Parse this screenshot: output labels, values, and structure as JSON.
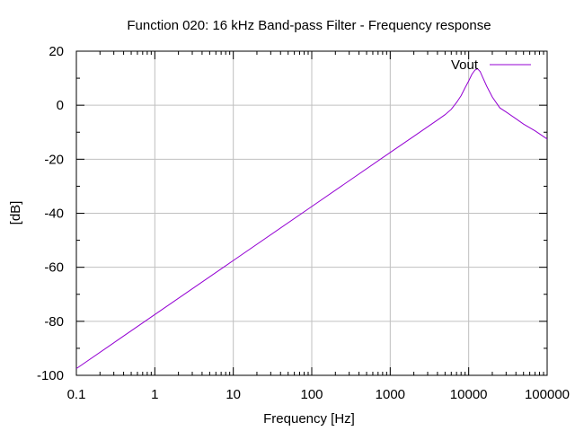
{
  "chart_data": {
    "type": "line",
    "title": "Function 020: 16 kHz Band-pass Filter - Frequency response",
    "xlabel": "Frequency [Hz]",
    "ylabel": "[dB]",
    "xscale": "log",
    "xlim": [
      0.1,
      100000
    ],
    "ylim": [
      -100,
      20
    ],
    "x_ticks": [
      0.1,
      1,
      10,
      100,
      1000,
      10000,
      100000
    ],
    "x_tick_labels": [
      "0.1",
      "1",
      "10",
      "100",
      "1000",
      "10000",
      "100000"
    ],
    "y_ticks": [
      -100,
      -80,
      -60,
      -40,
      -20,
      0,
      20
    ],
    "y_tick_labels": [
      "-100",
      "-80",
      "-60",
      "-40",
      "-20",
      "0",
      "20"
    ],
    "grid": true,
    "legend_position": "top-right",
    "series": [
      {
        "name": "Vout",
        "color": "#9400d3",
        "x": [
          0.1,
          1,
          10,
          100,
          1000,
          2000,
          3000,
          4000,
          5000,
          6000,
          7000,
          8000,
          9000,
          10000,
          11000,
          12000,
          13000,
          14000,
          15000,
          17000,
          20000,
          25000,
          30000,
          40000,
          50000,
          70000,
          100000
        ],
        "y": [
          -97.5,
          -77.5,
          -57.5,
          -37.5,
          -17.5,
          -11.5,
          -8,
          -5.5,
          -3.5,
          -1.5,
          1,
          3.5,
          6.5,
          9,
          11.5,
          13,
          13.5,
          12.5,
          10.5,
          7,
          3,
          -1,
          -2.5,
          -5,
          -7,
          -9.5,
          -12.5
        ]
      }
    ]
  }
}
